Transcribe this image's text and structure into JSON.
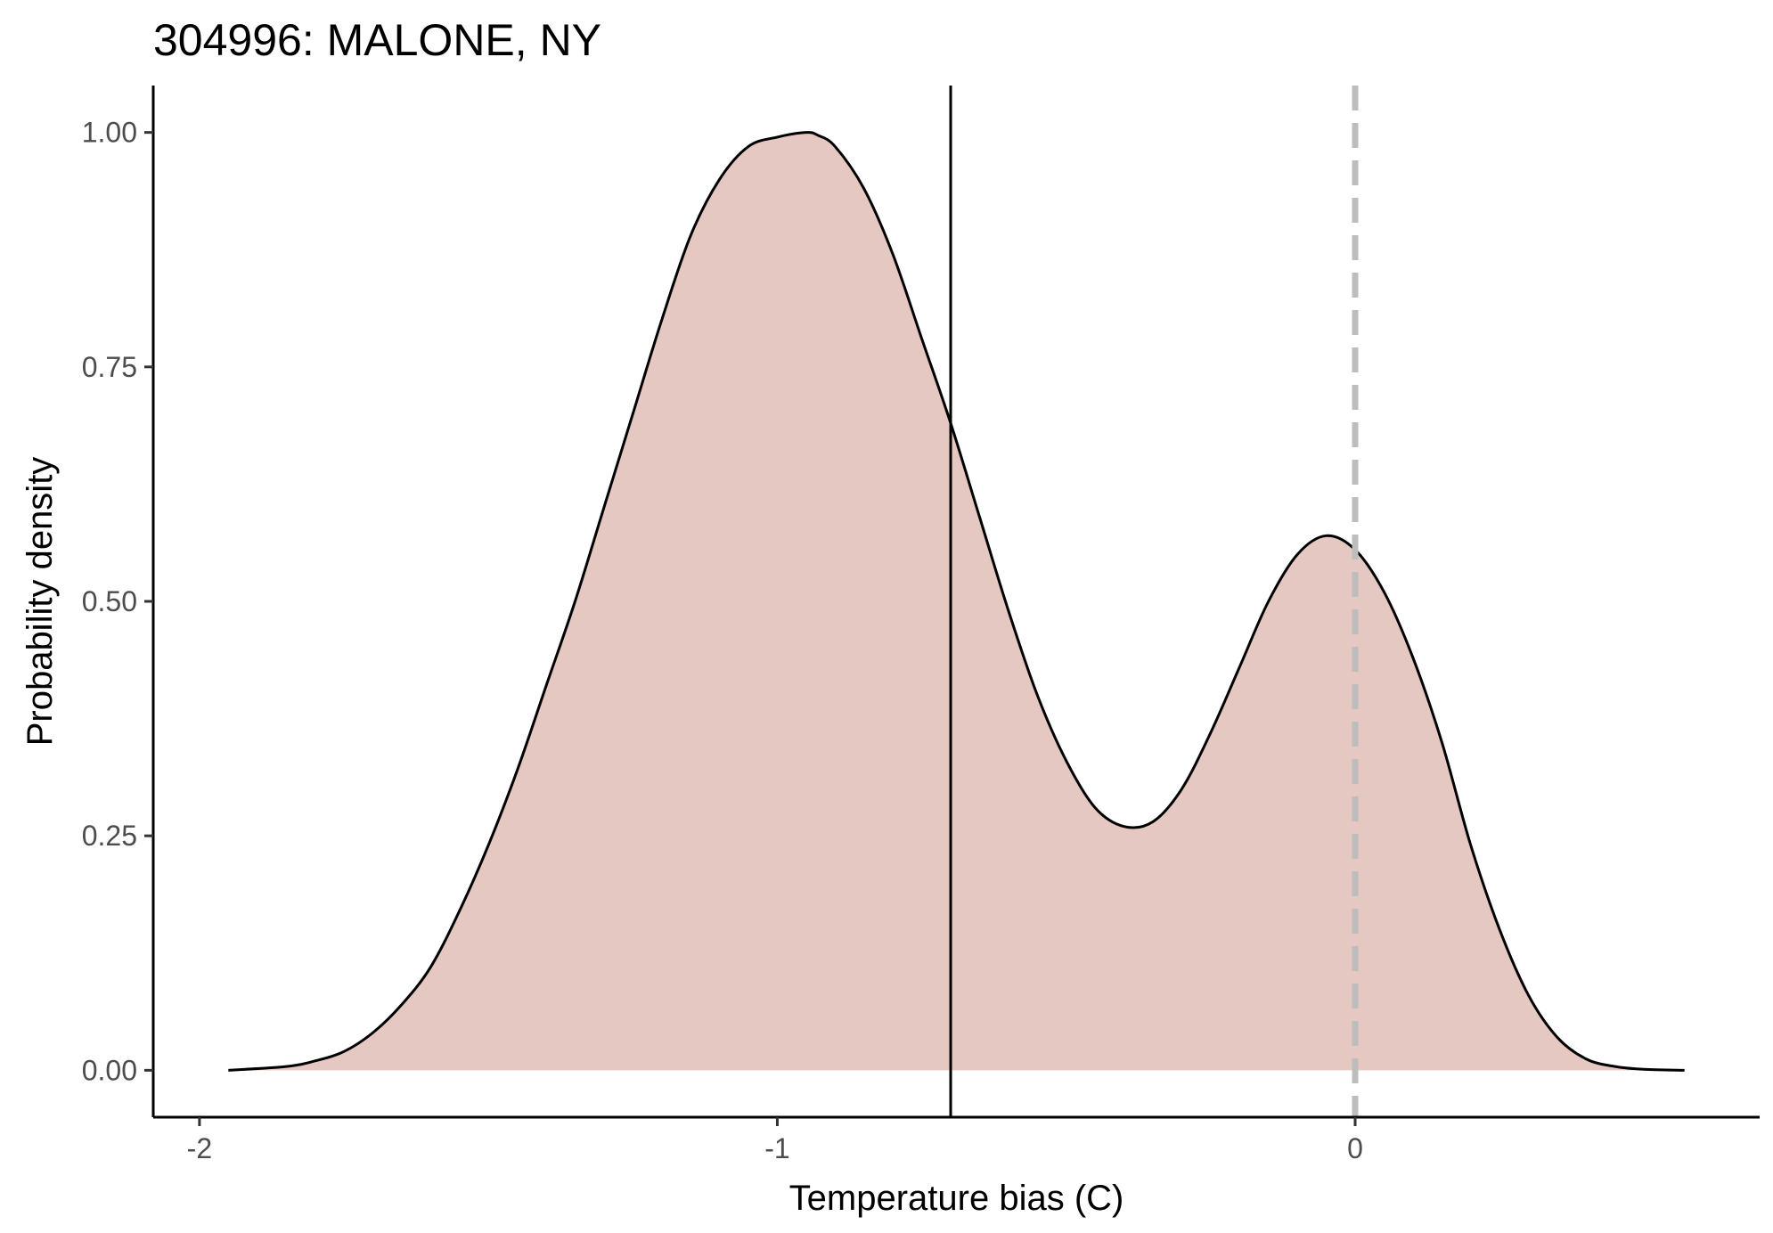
{
  "chart_data": {
    "type": "area",
    "title": "304996: MALONE, NY",
    "xlabel": "Temperature bias (C)",
    "ylabel": "Probability density",
    "xlim": [
      -2.08,
      0.7
    ],
    "ylim": [
      -0.05,
      1.05
    ],
    "x_ticks": [
      -2,
      -1,
      0
    ],
    "x_tick_labels": [
      "-2",
      "-1",
      "0"
    ],
    "y_ticks": [
      0,
      0.25,
      0.5,
      0.75,
      1.0
    ],
    "y_tick_labels": [
      "0.00",
      "0.25",
      "0.50",
      "0.75",
      "1.00"
    ],
    "grid": false,
    "legend": "none",
    "series": [
      {
        "x": [
          -1.95,
          -1.85,
          -1.8,
          -1.75,
          -1.7,
          -1.65,
          -1.6,
          -1.55,
          -1.5,
          -1.45,
          -1.4,
          -1.35,
          -1.3,
          -1.25,
          -1.2,
          -1.15,
          -1.1,
          -1.05,
          -1.0,
          -0.95,
          -0.93,
          -0.9,
          -0.85,
          -0.8,
          -0.75,
          -0.7,
          -0.65,
          -0.6,
          -0.55,
          -0.5,
          -0.45,
          -0.4,
          -0.35,
          -0.3,
          -0.25,
          -0.2,
          -0.15,
          -0.1,
          -0.05,
          0.0,
          0.05,
          0.1,
          0.15,
          0.2,
          0.25,
          0.3,
          0.35,
          0.4,
          0.45,
          0.5,
          0.57
        ],
        "y": [
          0.0,
          0.004,
          0.01,
          0.02,
          0.04,
          0.07,
          0.11,
          0.17,
          0.24,
          0.32,
          0.41,
          0.5,
          0.6,
          0.7,
          0.8,
          0.89,
          0.95,
          0.985,
          0.995,
          1.0,
          0.997,
          0.985,
          0.94,
          0.87,
          0.78,
          0.69,
          0.59,
          0.49,
          0.4,
          0.33,
          0.28,
          0.26,
          0.265,
          0.3,
          0.36,
          0.43,
          0.5,
          0.55,
          0.57,
          0.555,
          0.51,
          0.44,
          0.35,
          0.24,
          0.15,
          0.08,
          0.035,
          0.012,
          0.004,
          0.001,
          0.0
        ],
        "fill_color": "#e5c8c1",
        "line_color": "#000000"
      }
    ],
    "vlines": [
      {
        "x": -0.7,
        "style": "solid",
        "color": "#000000"
      },
      {
        "x": 0.0,
        "style": "dashed",
        "color": "#bdbdbd"
      }
    ]
  }
}
